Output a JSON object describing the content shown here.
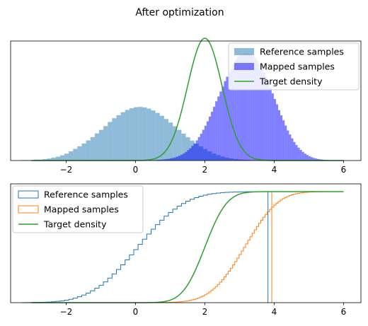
{
  "figure": {
    "suptitle": "After optimization"
  },
  "chart_data": [
    {
      "type": "bar",
      "subtype": "histogram-density",
      "xlim": [
        -3.6,
        6.5
      ],
      "ylim": [
        0,
        0.78
      ],
      "xticks": [
        -2,
        0,
        2,
        4,
        6
      ],
      "xtick_labels": [
        "−2",
        "0",
        "2",
        "4",
        "6"
      ],
      "yticks_visible": false,
      "grid": false,
      "legend_position": "top-right",
      "legend": [
        "Reference samples",
        "Mapped samples",
        "Target density"
      ],
      "colors": {
        "reference": "#1f77b4",
        "reference_alpha": 0.5,
        "mapped": "#0000ff",
        "mapped_alpha": 0.5,
        "target": "#2ca02c"
      },
      "series": [
        {
          "name": "Reference samples",
          "bin_start": -3.3,
          "bin_width": 0.125,
          "values": [
            0.003,
            0.003,
            0.003,
            0.006,
            0.006,
            0.009,
            0.013,
            0.019,
            0.025,
            0.034,
            0.045,
            0.06,
            0.076,
            0.093,
            0.111,
            0.131,
            0.153,
            0.177,
            0.2,
            0.225,
            0.252,
            0.276,
            0.296,
            0.315,
            0.33,
            0.341,
            0.348,
            0.35,
            0.347,
            0.339,
            0.327,
            0.311,
            0.292,
            0.271,
            0.248,
            0.224,
            0.2,
            0.176,
            0.152,
            0.13,
            0.11,
            0.092,
            0.075,
            0.06,
            0.046,
            0.035,
            0.026,
            0.019,
            0.014,
            0.01,
            0.007,
            0.005,
            0.004,
            0.003,
            0.003,
            0.002
          ]
        },
        {
          "name": "Mapped samples",
          "bin_start": 0.3,
          "bin_width": 0.0625,
          "values": [
            0,
            0.001,
            0.002,
            0.002,
            0.003,
            0.004,
            0.005,
            0.006,
            0.008,
            0.01,
            0.011,
            0.014,
            0.017,
            0.02,
            0.025,
            0.031,
            0.038,
            0.046,
            0.056,
            0.068,
            0.08,
            0.096,
            0.111,
            0.131,
            0.153,
            0.175,
            0.201,
            0.227,
            0.256,
            0.287,
            0.318,
            0.351,
            0.387,
            0.418,
            0.45,
            0.483,
            0.518,
            0.547,
            0.572,
            0.597,
            0.629,
            0.655,
            0.677,
            0.69,
            0.69,
            0.7,
            0.7,
            0.695,
            0.69,
            0.683,
            0.669,
            0.651,
            0.628,
            0.604,
            0.575,
            0.545,
            0.509,
            0.475,
            0.438,
            0.402,
            0.367,
            0.329,
            0.295,
            0.262,
            0.228,
            0.196,
            0.17,
            0.145,
            0.121,
            0.101,
            0.084,
            0.069,
            0.056,
            0.045,
            0.036,
            0.028,
            0.022,
            0.017,
            0.013,
            0.01,
            0.008,
            0.006,
            0.004,
            0.003,
            0.002,
            0.002,
            0.001,
            0.001
          ]
        },
        {
          "name": "Target density",
          "type": "line",
          "function": "normal",
          "mean": 2.0,
          "std": 0.5,
          "x_range": [
            -3.0,
            6.0
          ]
        }
      ]
    },
    {
      "type": "line",
      "subtype": "cumulative-step",
      "xlim": [
        -3.6,
        6.5
      ],
      "ylim": [
        0,
        1.07
      ],
      "xticks": [
        -2,
        0,
        2,
        4,
        6
      ],
      "xtick_labels": [
        "−2",
        "0",
        "2",
        "4",
        "6"
      ],
      "yticks_visible": false,
      "grid": false,
      "legend_position": "top-left",
      "legend": [
        "Reference samples",
        "Mapped samples",
        "Target density"
      ],
      "colors": {
        "reference": "#1f77b4",
        "mapped": "#ff7f0e",
        "target": "#2ca02c"
      },
      "series": [
        {
          "name": "Reference samples",
          "step_from": -3.3,
          "step_to": 3.82,
          "bin_width": 0.125,
          "final_drop_x": 3.82
        },
        {
          "name": "Mapped samples",
          "step_from": 0.3,
          "step_to": 3.93,
          "bin_width": 0.0625,
          "final_drop_x": 3.93
        },
        {
          "name": "Target density",
          "function": "normal-cdf",
          "mean": 2.0,
          "std": 0.5,
          "x_range": [
            -3.0,
            6.0
          ]
        }
      ]
    }
  ]
}
